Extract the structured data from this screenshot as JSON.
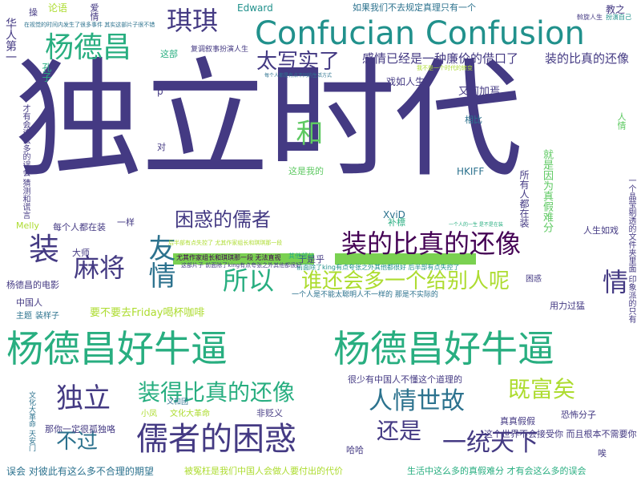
{
  "cloud": {
    "main": "独立时代",
    "w1": "杨德昌好牛逼",
    "w2": "杨德昌好牛逼",
    "w3": "儒者的困惑",
    "w4": "Confucian Confusion",
    "w5": "装的比真的还像",
    "w6": "谁还会多一个给别人呢",
    "w7": "装得比真的还像",
    "w8": "太写实了",
    "w9": "感情已经是一种廉价的借口了",
    "w10": "装的比真的还像",
    "w11": "困惑的儒者",
    "w12": "杨德昌",
    "w13": "琪琪",
    "w14": "麻将",
    "w15": "友情",
    "w16": "所以",
    "w17": "人情世故",
    "w18": "独立",
    "w19": "还是",
    "w20": "一统天下",
    "w21": "不过",
    "w22": "既富矣",
    "w23": "装",
    "w24": "情",
    "w25": "和",
    "w26": "戏如人生",
    "w27": "又何加焉",
    "w28": "如果我们不去规定真理只有一个",
    "w29": "论语",
    "w30": "Edward",
    "w31": "爱情",
    "w32": "教之",
    "w33": "操",
    "w34": "这部",
    "w35": "复调叙事",
    "w36": "扮演人生",
    "w37": "孔子",
    "w38": "华人第一",
    "w39": "XviD",
    "w40": "HKIFF",
    "w41": "补標",
    "w42": "所有人都在装",
    "w43": "就是因为真假难分",
    "w44": "人生如戏",
    "w45": "相比",
    "w46": "这是我的",
    "w47": "每个人都在装",
    "w48": "Melly",
    "w49": "大师",
    "w50": "一样",
    "w51": "杨德昌的电影",
    "w52": "中国人",
    "w53": "主题",
    "w54": "装样子",
    "w55": "要不要去Friday喝杯咖啡",
    "w56": "用力过猛",
    "w57": "困惑",
    "w58": "于是乎",
    "w59": "很少有中国人不懂这个道理的",
    "w60": "这个世界不会接受你 而且根本不需要你",
    "w61": "真真假假",
    "w62": "恐怖分子",
    "w63": "唉",
    "w64": "误会 对彼此有这么多不合理的期望",
    "w65": "被冤枉是我们中国人会做人要付出的代价",
    "w66": "生活中这么多的真假难分 才有会这么多的误会",
    "w67": "那你一定很孤独咯",
    "w68": "哈哈",
    "w69": "非贬义",
    "w70": "文化大革命",
    "w71": "小凤",
    "w72": "义和团",
    "w73": "文化大革命 天安门",
    "w74": "人情",
    "w75": "一个晶莹剔透的文件夹里面 印象派的只有",
    "w76": "其他部分",
    "w77": "p",
    "w78": "对",
    "w79": "才有会这么多的误会 猜测和谎言",
    "w80": "一个人是不能太聪明人不一样的 那是不实际的",
    "w81": "尤其作家组长和琪琪那一段 无法直视",
    "w82": "前面除了king有点夸张之外其他都很好 后半部有点失控了",
    "w83": "在视觉的时间内发生了很多事件 其实这部片子很不错",
    "w84": "每个人都是有点不同的生活方式",
    "w85": "我不是一个时代的转变",
    "w86": "一个人的一生 是不是在装",
    "w87": "后半部有点失控了 尤其作家组长和琪琪那一段",
    "w88": "这部片子 前面除了king有点夸张之外其他都很好",
    "w89": "斡旋人生",
    "w90": "扮演自己"
  },
  "colors": {
    "background": "#ffffff",
    "indigo": "#443a83",
    "blue_teal": "#2c728e",
    "green": "#28ae80",
    "yellow_green": "#addc30",
    "dark_purple": "#440154",
    "teal": "#21918c",
    "light_green": "#5ec962"
  }
}
